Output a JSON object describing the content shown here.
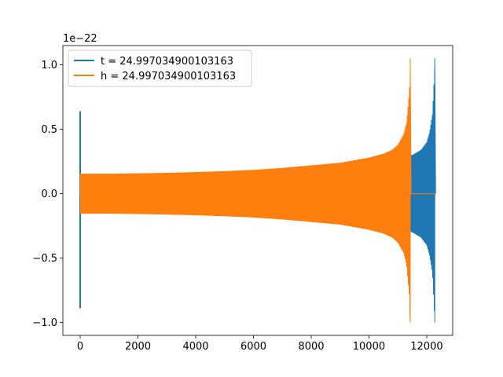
{
  "chart_data": {
    "type": "line",
    "title": "",
    "xlabel": "",
    "ylabel": "",
    "y_offset_label": "1e−22",
    "xlim": [
      -600,
      12900
    ],
    "ylim": [
      -1.1,
      1.15
    ],
    "x_ticks": [
      0,
      2000,
      4000,
      6000,
      8000,
      10000,
      12000
    ],
    "x_tick_labels": [
      "0",
      "2000",
      "4000",
      "6000",
      "8000",
      "10000",
      "12000"
    ],
    "y_ticks": [
      -1.0,
      -0.5,
      0.0,
      0.5,
      1.0
    ],
    "y_tick_labels": [
      "−1.0",
      "−0.5",
      "0.0",
      "0.5",
      "1.0"
    ],
    "grid": false,
    "legend": {
      "position": "upper-left",
      "entries": [
        "t = 24.997034900103163",
        "h = 24.997034900103163"
      ]
    },
    "series": [
      {
        "name": "t = 24.997034900103163",
        "color": "#1f77b4",
        "style": "chirp-envelope",
        "initial_spike": {
          "x": 0,
          "y_max": 0.64,
          "y_min": -0.89
        },
        "envelope_x": [
          0,
          1000,
          2000,
          3000,
          4000,
          5000,
          6000,
          7000,
          8000,
          9000,
          10000,
          11000,
          11500,
          11800,
          12000,
          12100,
          12200,
          12280
        ],
        "envelope_amp": [
          0.15,
          0.152,
          0.155,
          0.158,
          0.162,
          0.168,
          0.175,
          0.185,
          0.2,
          0.22,
          0.25,
          0.28,
          0.3,
          0.34,
          0.4,
          0.48,
          0.62,
          1.0
        ],
        "end_x": 12280,
        "tail_end_x": 12300
      },
      {
        "name": "h = 24.997034900103163",
        "color": "#ff7f0e",
        "style": "chirp-envelope",
        "envelope_x": [
          0,
          1000,
          2000,
          3000,
          4000,
          5000,
          6000,
          7000,
          8000,
          9000,
          10000,
          10500,
          10800,
          11000,
          11200,
          11300,
          11400,
          11430
        ],
        "envelope_amp": [
          0.155,
          0.155,
          0.158,
          0.162,
          0.168,
          0.175,
          0.185,
          0.2,
          0.22,
          0.24,
          0.28,
          0.31,
          0.34,
          0.38,
          0.46,
          0.55,
          0.8,
          1.0
        ],
        "end_x": 11430,
        "tail_end_x": 12300
      }
    ]
  }
}
